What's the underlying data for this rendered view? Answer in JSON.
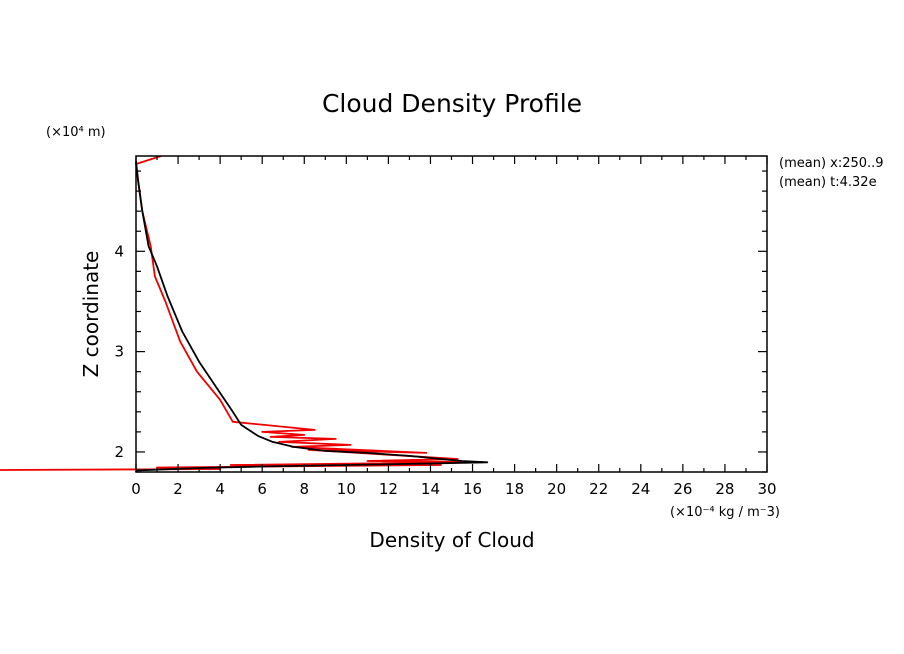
{
  "chart_data": {
    "type": "line",
    "title": "Cloud Density Profile",
    "xlabel": "Density of Cloud",
    "ylabel": "Z coordinate",
    "x_scale_note": "(×10⁻⁴ kg / m⁻3)",
    "y_scale_note": "(×10⁴ m)",
    "annotations": [
      "(mean) x:250..9",
      "(mean) t:4.32e"
    ],
    "xlim": [
      0,
      30
    ],
    "ylim": [
      1.8,
      4.95
    ],
    "xticks": [
      0,
      2,
      4,
      6,
      8,
      10,
      12,
      14,
      16,
      18,
      20,
      22,
      24,
      26,
      28,
      30
    ],
    "yticks": [
      2,
      3,
      4
    ],
    "yticklabels": [
      "2",
      "3",
      "4"
    ],
    "grid": false,
    "colors": {
      "series_black": "#000000",
      "series_red": "#ee0000"
    },
    "series": [
      {
        "points": [
          [
            0.0,
            4.9
          ],
          [
            0.1,
            4.7
          ],
          [
            0.3,
            4.4
          ],
          [
            0.6,
            4.05
          ],
          [
            1.0,
            3.85
          ],
          [
            1.5,
            3.55
          ],
          [
            2.2,
            3.2
          ],
          [
            3.0,
            2.9
          ],
          [
            3.8,
            2.65
          ],
          [
            4.6,
            2.4
          ],
          [
            5.0,
            2.27
          ],
          [
            5.8,
            2.16
          ],
          [
            6.5,
            2.1
          ],
          [
            7.5,
            2.05
          ],
          [
            9.0,
            2.01
          ],
          [
            11.0,
            1.99
          ],
          [
            13.0,
            1.96
          ],
          [
            14.5,
            1.93
          ],
          [
            15.5,
            1.91
          ],
          [
            16.7,
            1.897
          ],
          [
            14.0,
            1.885
          ],
          [
            10.0,
            1.87
          ],
          [
            6.0,
            1.855
          ],
          [
            3.0,
            1.84
          ],
          [
            0.0,
            1.815
          ]
        ]
      },
      {
        "points": [
          [
            1.2,
            4.95
          ],
          [
            0.0,
            4.87
          ],
          [
            0.3,
            4.4
          ],
          [
            0.7,
            4.05
          ],
          [
            0.9,
            3.75
          ],
          [
            1.4,
            3.5
          ],
          [
            2.1,
            3.1
          ],
          [
            2.9,
            2.8
          ],
          [
            4.0,
            2.52
          ],
          [
            4.6,
            2.3
          ],
          [
            8.5,
            2.22
          ],
          [
            6.0,
            2.2
          ],
          [
            8.0,
            2.17
          ],
          [
            6.4,
            2.15
          ],
          [
            9.5,
            2.13
          ],
          [
            6.8,
            2.1
          ],
          [
            10.2,
            2.07
          ],
          [
            7.4,
            2.05
          ],
          [
            13.8,
            1.99
          ],
          [
            8.2,
            2.02
          ],
          [
            15.3,
            1.93
          ],
          [
            11.0,
            1.91
          ],
          [
            16.5,
            1.898
          ],
          [
            4.5,
            1.87
          ],
          [
            14.5,
            1.87
          ],
          [
            1.0,
            1.845
          ],
          [
            4.0,
            1.83
          ],
          [
            -6.5,
            1.82
          ]
        ]
      }
    ]
  }
}
